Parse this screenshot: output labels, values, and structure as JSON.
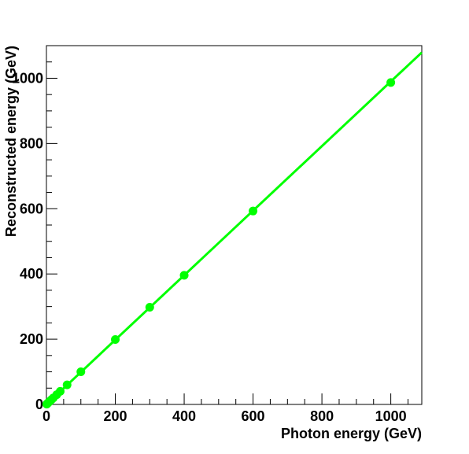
{
  "chart_data": {
    "type": "scatter",
    "title": "",
    "xlabel": "Photon energy (GeV)",
    "ylabel": "Reconstructed energy (GeV)",
    "xlim": [
      0,
      1090
    ],
    "ylim": [
      0,
      1100
    ],
    "x_ticks": [
      0,
      200,
      400,
      600,
      800,
      1000
    ],
    "y_ticks": [
      0,
      200,
      400,
      600,
      800,
      1000
    ],
    "grid": false,
    "legend": "none",
    "series": [
      {
        "color": "#00ff00",
        "marker": "circle",
        "points": [
          {
            "x": 1,
            "y": 1
          },
          {
            "x": 2,
            "y": 2
          },
          {
            "x": 5,
            "y": 5
          },
          {
            "x": 10,
            "y": 10
          },
          {
            "x": 15,
            "y": 15
          },
          {
            "x": 20,
            "y": 20
          },
          {
            "x": 30,
            "y": 30
          },
          {
            "x": 40,
            "y": 40
          },
          {
            "x": 60,
            "y": 60
          },
          {
            "x": 100,
            "y": 100
          },
          {
            "x": 200,
            "y": 199
          },
          {
            "x": 300,
            "y": 298
          },
          {
            "x": 400,
            "y": 396
          },
          {
            "x": 600,
            "y": 593
          },
          {
            "x": 1000,
            "y": 987
          }
        ]
      }
    ],
    "fit_line": {
      "color": "#00ff00",
      "slope": 0.99,
      "intercept": 0,
      "x_range": [
        0,
        1090
      ]
    }
  }
}
